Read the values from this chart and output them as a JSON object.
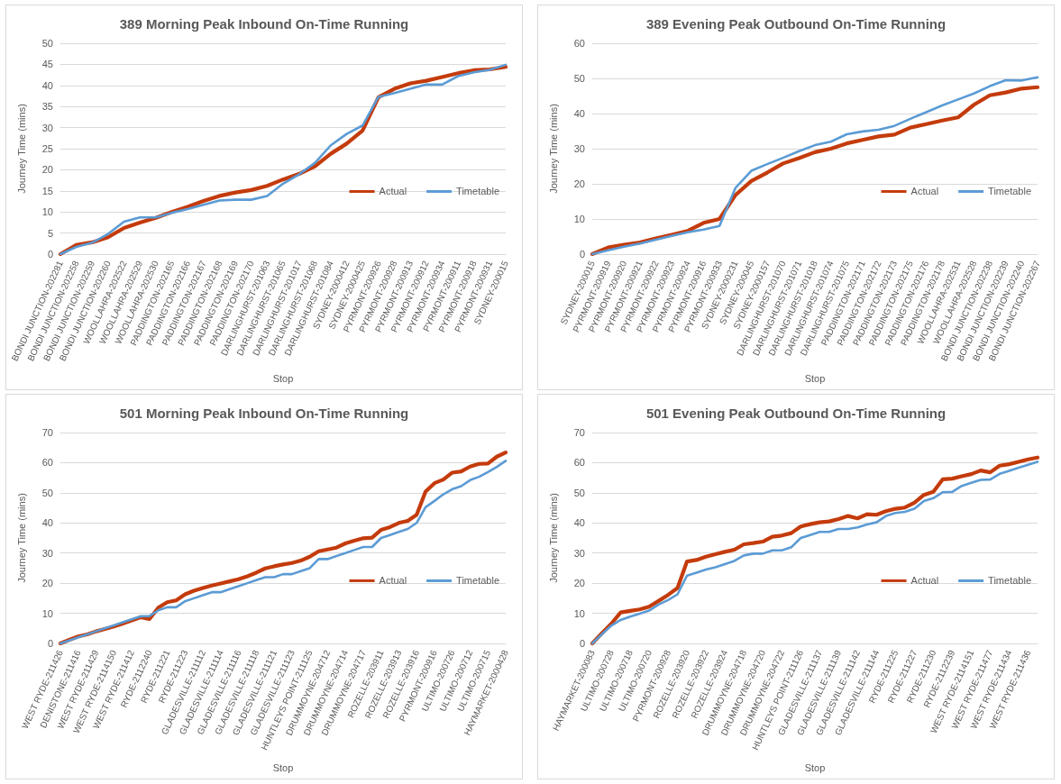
{
  "chart_data": [
    {
      "type": "line",
      "title": "389 Morning Peak Inbound On-Time Running",
      "xlabel": "Stop",
      "ylabel": "Journey Time (mins)",
      "legend": "right",
      "grid": "y",
      "marker": "none",
      "line_style": "solid",
      "ylim": [
        0,
        50
      ],
      "yticks": [
        0,
        5,
        10,
        15,
        20,
        25,
        30,
        35,
        40,
        45,
        50
      ],
      "categories": [
        "BONDI JUNCTION-202281",
        "BONDI JUNCTION-202258",
        "BONDI JUNCTION-202259",
        "BONDI JUNCTION-202260",
        "WOOLLAHRA-202522",
        "WOOLLAHRA-202529",
        "WOOLLAHRA-202530",
        "PADDINGTON-202165",
        "PADDINGTON-202166",
        "PADDINGTON-202167",
        "PADDINGTON-202168",
        "PADDINGTON-202169",
        "PADDINGTON-202170",
        "DARLINGHURST-201063",
        "DARLINGHURST-201065",
        "DARLINGHURST-201017",
        "DARLINGHURST-201068",
        "DARLINGHURST-201084",
        "SYDNEY-2000412",
        "SYDNEY-2000425",
        "PYRMONT-200926",
        "PYRMONT-200928",
        "PYRMONT-200913",
        "PYRMONT-200912",
        "PYRMONT-200934",
        "PYRMONT-200911",
        "PYRMONT-200918",
        "PYRMONT-200931",
        "SYDNEY-200015"
      ],
      "series": [
        {
          "name": "Actual",
          "color": "#c43b0c",
          "values": [
            0,
            2.2,
            2.8,
            4,
            6.2,
            7.5,
            8.6,
            10,
            11.2,
            12.6,
            13.8,
            14.6,
            15.2,
            16.2,
            17.7,
            19,
            20.8,
            23.8,
            26.2,
            29.3,
            37.2,
            39.2,
            40.5,
            41.1,
            42,
            42.9,
            43.6,
            43.8,
            44.4
          ]
        },
        {
          "name": "Timetable",
          "color": "#5b9bd5",
          "values": [
            0,
            1.7,
            2.7,
            4.8,
            7.7,
            8.7,
            8.7,
            9.8,
            10.7,
            11.7,
            12.7,
            12.9,
            12.9,
            13.8,
            16.7,
            18.9,
            21.6,
            25.8,
            28.5,
            30.5,
            37.3,
            38.2,
            39.2,
            40.2,
            40.2,
            42.2,
            43.1,
            43.7,
            44.9
          ]
        }
      ]
    },
    {
      "type": "line",
      "title": "389 Evening Peak Outbound On-Time Running",
      "xlabel": "Stop",
      "ylabel": "Journey Time (mins)",
      "legend": "right",
      "grid": "y",
      "marker": "none",
      "line_style": "solid",
      "ylim": [
        0,
        60
      ],
      "yticks": [
        0,
        10,
        20,
        30,
        40,
        50,
        60
      ],
      "categories": [
        "SYDNEY-200015",
        "PYRMONT-200919",
        "PYRMONT-200920",
        "PYRMONT-200921",
        "PYRMONT-200922",
        "PYRMONT-200923",
        "PYRMONT-200924",
        "PYRMONT-200916",
        "PYRMONT-200933",
        "SYDNEY-2000231",
        "SYDNEY-200045",
        "SYDNEY-2000157",
        "DARLINGHURST-201070",
        "DARLINGHURST-201071",
        "DARLINGHURST-201018",
        "DARLINGHURST-201074",
        "DARLINGHURST-201075",
        "PADDINGTON-202171",
        "PADDINGTON-202172",
        "PADDINGTON-202173",
        "PADDINGTON-202175",
        "PADDINGTON-202176",
        "PADDINGTON-202178",
        "WOOLLAHRA-202531",
        "WOOLLAHRA-202528",
        "BONDI JUNCTION-202238",
        "BONDI JUNCTION-202239",
        "BONDI JUNCTION-202240",
        "BONDI JUNCTION-202267"
      ],
      "series": [
        {
          "name": "Actual",
          "color": "#c43b0c",
          "values": [
            0,
            1.9,
            2.7,
            3.3,
            4.5,
            5.5,
            6.6,
            8.9,
            10,
            16.8,
            20.8,
            23.2,
            25.8,
            27.3,
            29,
            30,
            31.5,
            32.5,
            33.5,
            34,
            36,
            37,
            38,
            38.9,
            42.5,
            45.2,
            46,
            47.1,
            47.5
          ]
        },
        {
          "name": "Timetable",
          "color": "#5b9bd5",
          "values": [
            0,
            1.1,
            2.1,
            3,
            4.1,
            5.2,
            6.2,
            7,
            8,
            18.8,
            23.7,
            25.6,
            27.4,
            29.3,
            31,
            32,
            34.1,
            34.9,
            35.4,
            36.5,
            38.5,
            40.4,
            42.3,
            44,
            45.7,
            47.8,
            49.5,
            49.4,
            50.3
          ]
        }
      ]
    },
    {
      "type": "line",
      "title": "501 Morning Peak Inbound On-Time Running",
      "xlabel": "Stop",
      "ylabel": "Journey Time (mins)",
      "legend": "right",
      "grid": "y",
      "marker": "none",
      "line_style": "solid",
      "ylim": [
        0,
        70
      ],
      "yticks": [
        0,
        10,
        20,
        30,
        40,
        50,
        60,
        70
      ],
      "categories": [
        "WEST RYDE-211426",
        null,
        "DENISTONE-211416",
        null,
        "WEST RYDE-211429",
        null,
        "WEST RYDE-2114150",
        null,
        "WEST RYDE-211412",
        null,
        "RYDE-2112240",
        null,
        "RYDE-211221",
        null,
        "RYDE-211223",
        null,
        "GLADESVILLE-211112",
        null,
        "GLADESVILLE-211114",
        null,
        "GLADESVILLE-211116",
        null,
        "GLADESVILLE-211118",
        null,
        "GLADESVILLE-211121",
        null,
        "GLADESVILLE-211123",
        null,
        "HUNTLEYS POINT-211125",
        null,
        "DRUMMOYNE-204712",
        null,
        "DRUMMOYNE-204714",
        null,
        "DRUMMOYNE-204717",
        null,
        "ROZELLE-203911",
        null,
        "ROZELLE-203913",
        null,
        "ROZELLE-203916",
        null,
        "PYRMONT-200916",
        null,
        "ULTIMO-200726",
        null,
        "ULTIMO-200712",
        null,
        "ULTIMO-200715",
        null,
        "HAYMARKET-2000428"
      ],
      "series": [
        {
          "name": "Actual",
          "color": "#c43b0c",
          "values": [
            0,
            1.2,
            2.3,
            3,
            4,
            4.8,
            5.6,
            6.6,
            7.6,
            8.7,
            8.1,
            11.9,
            13.7,
            14.3,
            16.3,
            17.5,
            18.4,
            19.2,
            19.9,
            20.6,
            21.3,
            22.3,
            23.5,
            24.9,
            25.6,
            26.2,
            26.7,
            27.5,
            28.8,
            30.6,
            31.2,
            31.8,
            33.2,
            34.1,
            34.9,
            35.1,
            37.7,
            38.6,
            40,
            40.7,
            42.7,
            50.4,
            53.2,
            54.4,
            56.7,
            57.1,
            58.7,
            59.6,
            59.7,
            62,
            63.4
          ]
        },
        {
          "name": "Timetable",
          "color": "#5b9bd5",
          "values": [
            0,
            1,
            2,
            3,
            4,
            5,
            6,
            7,
            8,
            9,
            9.1,
            11,
            12,
            12,
            14,
            15,
            16,
            17,
            17,
            18,
            19,
            20,
            21,
            22,
            22,
            23,
            23,
            24,
            25,
            28,
            28,
            29,
            30,
            31,
            32,
            32,
            35,
            36,
            37,
            38,
            40,
            45.2,
            47.3,
            49.5,
            51.2,
            52.2,
            54.2,
            55.3,
            56.9,
            58.6,
            60.6
          ]
        }
      ]
    },
    {
      "type": "line",
      "title": "501 Evening Peak Outbound On-Time Running",
      "xlabel": "Stop",
      "ylabel": "Journey Time (mins)",
      "legend": "right",
      "grid": "y",
      "marker": "none",
      "line_style": "solid",
      "ylim": [
        0,
        70
      ],
      "yticks": [
        0,
        10,
        20,
        30,
        40,
        50,
        60,
        70
      ],
      "categories": [
        "HAYMARKET-200083",
        null,
        "ULTIMO-200728",
        null,
        "ULTIMO-200718",
        null,
        "ULTIMO-200720",
        null,
        "PYRMONT-200928",
        null,
        "ROZELLE-203920",
        null,
        "ROZELLE-203922",
        null,
        "ROZELLE-203924",
        null,
        "DRUMMOYNE-204718",
        null,
        "DRUMMOYNE-204720",
        null,
        "DRUMMOYNE-204722",
        null,
        "HUNTLEYS POINT-211126",
        null,
        "GLADESVILLE-211137",
        null,
        "GLADESVILLE-211139",
        null,
        "GLADESVILLE-211142",
        null,
        "GLADESVILLE-211144",
        null,
        "RYDE-211225",
        null,
        "RYDE-211227",
        null,
        "RYDE-211230",
        null,
        "RYDE-2112239",
        null,
        "WEST RYDE-2114151",
        null,
        "WEST RYDE-211477",
        null,
        "WEST RYDE-211434",
        null,
        "WEST RYDE-211436",
        null
      ],
      "series": [
        {
          "name": "Actual",
          "color": "#c43b0c",
          "values": [
            0,
            3.3,
            6.5,
            10.3,
            10.8,
            11.3,
            12.2,
            14.1,
            16.1,
            18.4,
            27.2,
            27.7,
            28.8,
            29.6,
            30.4,
            31.1,
            32.9,
            33.3,
            33.8,
            35.4,
            35.8,
            36.6,
            38.8,
            39.6,
            40.2,
            40.5,
            41.3,
            42.3,
            41.5,
            42.9,
            42.7,
            43.9,
            44.7,
            45.1,
            46.7,
            49.3,
            50.3,
            54.5,
            54.7,
            55.5,
            56.2,
            57.4,
            56.8,
            59,
            59.5,
            60.3,
            61.1,
            61.7
          ]
        },
        {
          "name": "Timetable",
          "color": "#5b9bd5",
          "values": [
            0,
            3,
            5.9,
            7.8,
            8.9,
            9.9,
            10.9,
            12.9,
            14.4,
            16.3,
            22.5,
            23.5,
            24.5,
            25.3,
            26.3,
            27.4,
            29.2,
            29.8,
            29.8,
            30.9,
            30.9,
            31.9,
            35,
            36,
            37,
            37,
            38,
            38,
            38.5,
            39.5,
            40.2,
            42.3,
            43.3,
            43.7,
            44.7,
            47.3,
            48.2,
            50.2,
            50.3,
            52.3,
            53.3,
            54.3,
            54.4,
            56.3,
            57.3,
            58.3,
            59.3,
            60.3
          ]
        }
      ]
    }
  ]
}
